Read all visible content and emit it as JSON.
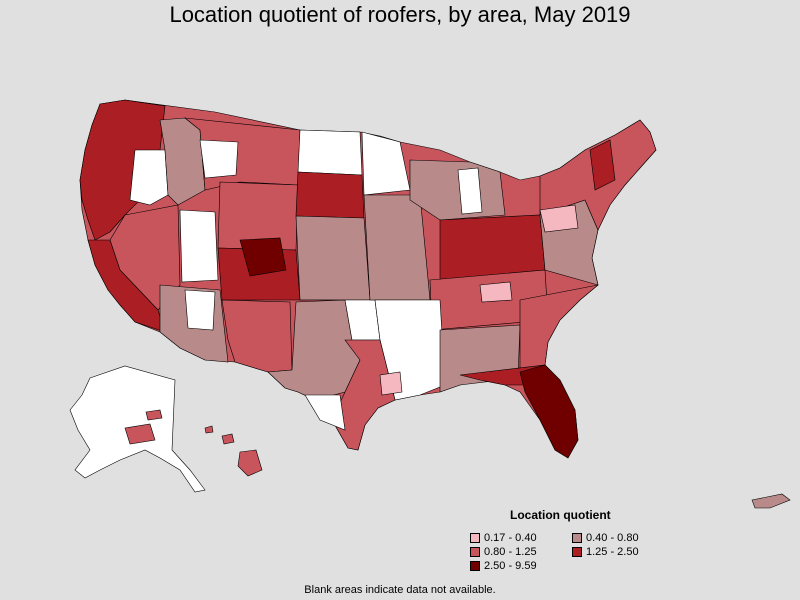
{
  "title": "Location quotient of roofers, by area, May 2019",
  "legend": {
    "title": "Location quotient",
    "items": [
      {
        "label": "0.17 - 0.40",
        "color": "#f6b8c0"
      },
      {
        "label": "0.40 - 0.80",
        "color": "#b88a8a"
      },
      {
        "label": "0.80 - 1.25",
        "color": "#c8545c"
      },
      {
        "label": "1.25 - 2.50",
        "color": "#aa1e24"
      },
      {
        "label": "2.50 - 9.59",
        "color": "#700000"
      }
    ]
  },
  "note": "Blank areas indicate data not available.",
  "colors": {
    "background": "#e0e0e0",
    "no_data": "#ffffff",
    "border": "#000000"
  }
}
